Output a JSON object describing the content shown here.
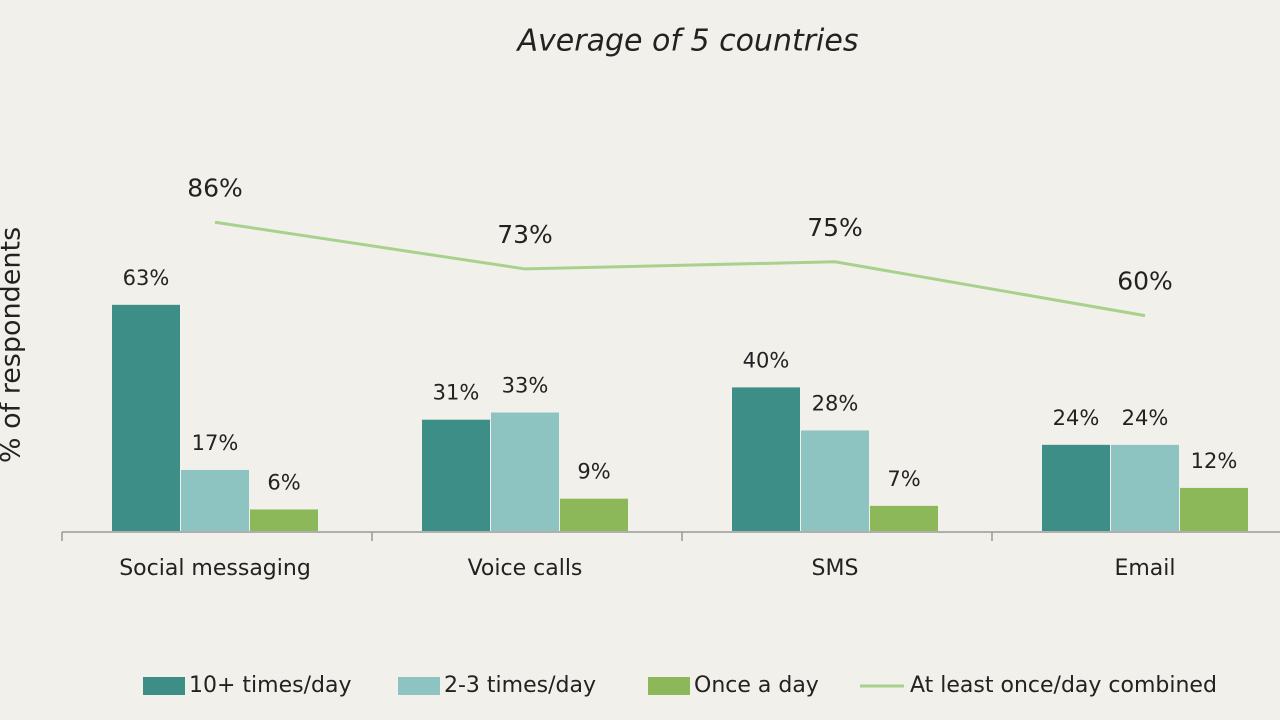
{
  "chart_data": {
    "type": "bar",
    "title": "Average of 5 countries",
    "y_label": "% of respondents",
    "categories": [
      "Social messaging",
      "Voice calls",
      "SMS",
      "Email"
    ],
    "ylim": [
      0,
      100
    ],
    "series": [
      {
        "name": "10+ times/day",
        "color": "#3c8e86",
        "values": [
          63,
          31,
          40,
          24
        ],
        "value_labels": [
          "63%",
          "31%",
          "40%",
          "24%"
        ]
      },
      {
        "name": "2-3 times/day",
        "color": "#8dc3c1",
        "values": [
          17,
          33,
          28,
          24
        ],
        "value_labels": [
          "17%",
          "33%",
          "28%",
          "24%"
        ]
      },
      {
        "name": "Once a day",
        "color": "#8cb859",
        "values": [
          6,
          9,
          7,
          12
        ],
        "value_labels": [
          "6%",
          "9%",
          "7%",
          "12%"
        ]
      },
      {
        "name": "At least once/day combined",
        "type": "line",
        "color": "#a9d18e",
        "values": [
          86,
          73,
          75,
          60
        ],
        "value_labels": [
          "86%",
          "73%",
          "75%",
          "60%"
        ]
      }
    ]
  }
}
